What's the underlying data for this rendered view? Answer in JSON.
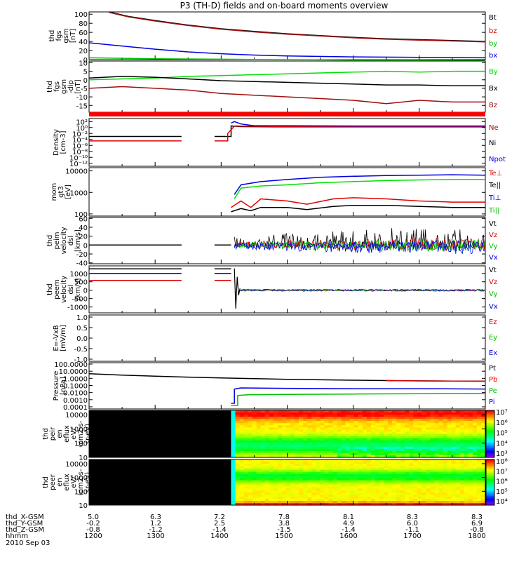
{
  "title": "P3 (TH-D) fields and on-board moments overview",
  "date": "2010 Sep 03",
  "ephemeris": {
    "rows": [
      {
        "label": "thd_X-GSM",
        "values": [
          "5.0",
          "6.3",
          "7.2",
          "7.8",
          "8.1",
          "8.3",
          "8.3"
        ]
      },
      {
        "label": "thd_Y-GSM",
        "values": [
          "-0.2",
          "1.2",
          "2.5",
          "3.8",
          "4.9",
          "6.0",
          "6.9"
        ]
      },
      {
        "label": "thd_Z-GSM",
        "values": [
          "-0.8",
          "-1.2",
          "-1.4",
          "-1.5",
          "-1.4",
          "-1.1",
          "-0.8"
        ]
      }
    ],
    "time_label": "hhmm",
    "times": [
      "1200",
      "1300",
      "1400",
      "1500",
      "1600",
      "1700",
      "1800"
    ]
  },
  "colors": {
    "black": "#000000",
    "red": "#e00000",
    "darkred": "#a01010",
    "green": "#00e000",
    "blue": "#0000e0"
  },
  "chart_data": [
    {
      "type": "line",
      "ylabel": [
        "thd",
        "fgs",
        "gsm",
        "[nT]"
      ],
      "yticks": [
        "100",
        "80",
        "60",
        "40",
        "20",
        "0"
      ],
      "ylim": [
        0,
        105
      ],
      "x_hours": [
        12.0,
        18.0
      ],
      "legend": [
        {
          "name": "Bt",
          "color": "#000000"
        },
        {
          "name": "bz",
          "color": "#e00000"
        },
        {
          "name": "by",
          "color": "#00c000"
        },
        {
          "name": "bx",
          "color": "#0000e0"
        }
      ],
      "series": [
        {
          "name": "Bt",
          "color": "#000000",
          "x": [
            12.3,
            12.6,
            13.0,
            13.5,
            14.0,
            14.5,
            15.0,
            15.5,
            16.0,
            16.5,
            17.0,
            17.5,
            18.0
          ],
          "y": [
            105,
            95,
            86,
            76,
            68,
            62,
            57,
            53,
            49,
            46,
            44,
            42,
            40
          ]
        },
        {
          "name": "bz",
          "color": "#a01010",
          "x": [
            12.3,
            12.6,
            13.0,
            13.5,
            14.0,
            14.5,
            15.0,
            15.5,
            16.0,
            16.5,
            17.0,
            17.5,
            18.0
          ],
          "y": [
            104,
            94,
            85,
            75,
            67,
            61,
            56,
            52,
            48,
            45,
            43,
            41,
            39
          ]
        },
        {
          "name": "bx",
          "color": "#0000e0",
          "x": [
            12.0,
            12.5,
            13.0,
            13.5,
            14.0,
            14.5,
            15.0,
            16.0,
            17.0,
            18.0
          ],
          "y": [
            37,
            30,
            23,
            17,
            13,
            10,
            8,
            6,
            5,
            4
          ]
        },
        {
          "name": "by",
          "color": "#00c000",
          "x": [
            12.0,
            12.5,
            13.0,
            14.0,
            15.0,
            16.0,
            17.0,
            18.0
          ],
          "y": [
            4,
            3,
            2,
            1,
            0,
            -1,
            -1,
            -2
          ]
        }
      ]
    },
    {
      "type": "line",
      "ylabel": [
        "thd",
        "fgs",
        "gsm",
        "-dip",
        "[nT]"
      ],
      "yticks": [
        "10",
        "5",
        "0",
        "-5",
        "-10",
        "-15"
      ],
      "ylim": [
        -19,
        11
      ],
      "x_hours": [
        12.0,
        18.0
      ],
      "legend": [
        {
          "name": "By",
          "color": "#00e000"
        },
        {
          "name": "Bx",
          "color": "#000000"
        },
        {
          "name": "Bz",
          "color": "#a01010"
        }
      ],
      "series": [
        {
          "name": "By",
          "color": "#00e000",
          "x": [
            12.0,
            12.5,
            13.0,
            13.5,
            14.0,
            14.5,
            15.0,
            15.5,
            16.0,
            16.5,
            17.0,
            17.5,
            18.0
          ],
          "y": [
            0,
            0.5,
            1,
            2,
            2.5,
            3,
            3.5,
            4,
            4.5,
            5,
            4.5,
            5,
            5
          ]
        },
        {
          "name": "Bx",
          "color": "#000000",
          "x": [
            12.0,
            12.5,
            13.0,
            13.5,
            14.0,
            14.5,
            15.0,
            15.5,
            16.0,
            16.5,
            17.0,
            17.5,
            18.0
          ],
          "y": [
            1,
            2,
            1.5,
            0.5,
            -0.5,
            -1,
            -1.5,
            -2,
            -2.5,
            -3,
            -3,
            -3.5,
            -3.5
          ]
        },
        {
          "name": "Bz",
          "color": "#a01010",
          "x": [
            12.0,
            12.5,
            13.0,
            13.5,
            14.0,
            14.5,
            15.0,
            15.5,
            16.0,
            16.5,
            17.0,
            17.5,
            18.0
          ],
          "y": [
            -5,
            -4,
            -5,
            -6,
            -8,
            -9,
            -10,
            -11,
            -12,
            -14,
            -12,
            -13,
            -13
          ]
        }
      ]
    },
    {
      "type": "line",
      "ylabel": [
        "Density",
        "[cm-3]"
      ],
      "yticks": [
        "10²",
        "10⁰",
        "10⁻²",
        "10⁻⁴",
        "10⁻⁶",
        "10⁻⁸",
        "10⁻¹⁰",
        "10⁻¹²"
      ],
      "ylim_log10": [
        -13,
        3
      ],
      "x_hours": [
        12.0,
        18.0
      ],
      "legend": [
        {
          "name": "Ne",
          "color": "#a01010"
        },
        {
          "name": "Ni",
          "color": "#000000"
        },
        {
          "name": "Npot",
          "color": "#0000e0"
        }
      ],
      "series": [
        {
          "name": "Ni",
          "color": "#000000",
          "x": [
            12.0,
            13.4,
            null,
            13.9,
            14.15,
            14.15,
            14.3,
            15.0,
            16.0,
            17.0,
            18.0
          ],
          "y": [
            -3,
            -3,
            null,
            -3,
            -3,
            0.5,
            0.3,
            0.2,
            0.2,
            0.2,
            0.2
          ]
        },
        {
          "name": "Ne",
          "color": "#e00000",
          "x": [
            12.0,
            13.4,
            null,
            13.9,
            14.1,
            14.1,
            14.2,
            15.0,
            16.0,
            17.0,
            18.0
          ],
          "y": [
            -4.5,
            -4.5,
            null,
            -4.5,
            -4.5,
            -2,
            0.5,
            0.3,
            0.3,
            0.3,
            0.3
          ]
        },
        {
          "name": "Npot",
          "color": "#0000e0",
          "x": [
            14.15,
            14.2,
            14.3,
            14.5,
            15.0,
            16.0,
            17.0,
            18.0
          ],
          "y": [
            1.5,
            2.0,
            1.2,
            0.6,
            0.6,
            0.5,
            0.5,
            0.5
          ]
        }
      ]
    },
    {
      "type": "line",
      "ylabel": [
        "mom",
        "gt3",
        "[eV]"
      ],
      "yticks": [
        "10000",
        "1000",
        "100"
      ],
      "ylim_log10": [
        1.9,
        4.15
      ],
      "x_hours": [
        12.0,
        18.0
      ],
      "legend": [
        {
          "name": "Te⊥",
          "color": "#e00000"
        },
        {
          "name": "Te||",
          "color": "#000000"
        },
        {
          "name": "Ti⊥",
          "color": "#0000e0"
        },
        {
          "name": "Ti||",
          "color": "#00c000"
        }
      ],
      "series": [
        {
          "name": "Ti⊥",
          "color": "#0000e0",
          "x": [
            14.2,
            14.3,
            14.6,
            15.0,
            15.5,
            16.0,
            16.5,
            17.0,
            17.5,
            18.0
          ],
          "y": [
            2.9,
            3.35,
            3.5,
            3.6,
            3.7,
            3.75,
            3.78,
            3.8,
            3.82,
            3.8
          ]
        },
        {
          "name": "Ti||",
          "color": "#00e000",
          "x": [
            14.2,
            14.3,
            14.6,
            15.0,
            15.5,
            16.0,
            16.5,
            17.0,
            17.5,
            18.0
          ],
          "y": [
            2.7,
            3.2,
            3.3,
            3.35,
            3.45,
            3.5,
            3.55,
            3.58,
            3.6,
            3.6
          ]
        },
        {
          "name": "Te⊥",
          "color": "#e00000",
          "x": [
            14.15,
            14.3,
            14.45,
            14.6,
            15.0,
            15.3,
            15.7,
            16.0,
            16.5,
            17.0,
            17.5,
            18.0
          ],
          "y": [
            2.3,
            2.6,
            2.3,
            2.7,
            2.6,
            2.45,
            2.7,
            2.75,
            2.7,
            2.6,
            2.55,
            2.55
          ]
        },
        {
          "name": "Te||",
          "color": "#000000",
          "x": [
            14.15,
            14.3,
            14.45,
            14.6,
            15.0,
            15.3,
            15.7,
            16.0,
            16.5,
            17.0,
            17.5,
            18.0
          ],
          "y": [
            2.1,
            2.25,
            2.15,
            2.3,
            2.3,
            2.2,
            2.35,
            2.4,
            2.4,
            2.35,
            2.3,
            2.3
          ]
        }
      ]
    },
    {
      "type": "line",
      "ylabel": [
        "thd",
        "peim",
        "velocity",
        "dsl",
        "[km/s]"
      ],
      "yticks": [
        "60",
        "40",
        "20",
        "0",
        "-20",
        "-40"
      ],
      "ylim": [
        -42,
        62
      ],
      "x_hours": [
        12.0,
        18.0
      ],
      "legend": [
        {
          "name": "Vt",
          "color": "#000000"
        },
        {
          "name": "Vz",
          "color": "#e00000"
        },
        {
          "name": "Vy",
          "color": "#00c000"
        },
        {
          "name": "Vx",
          "color": "#0000e0"
        }
      ],
      "series": [
        {
          "name": "Vx",
          "color": "#0000e0",
          "x": [
            12.0,
            13.4,
            null,
            13.9,
            14.15
          ],
          "y": [
            0,
            0,
            null,
            0,
            0
          ]
        },
        {
          "name": "Vt",
          "color": "#000000",
          "x": [
            12.0,
            13.4,
            null,
            13.9,
            14.15
          ],
          "y": [
            0,
            0,
            null,
            0,
            0
          ]
        }
      ],
      "noise_band": {
        "x_start": 14.2,
        "x_end": 18.0
      }
    },
    {
      "type": "line",
      "ylabel": [
        "thd",
        "peem",
        "velocity",
        "dsl",
        "[km/s]"
      ],
      "yticks": [
        "1000",
        "500",
        "0",
        "-500",
        "-1000"
      ],
      "ylim": [
        -1350,
        1450
      ],
      "x_hours": [
        12.0,
        18.0
      ],
      "legend": [
        {
          "name": "Vt",
          "color": "#000000"
        },
        {
          "name": "Vz",
          "color": "#e00000"
        },
        {
          "name": "Vy",
          "color": "#00c000"
        },
        {
          "name": "Vx",
          "color": "#0000e0"
        }
      ],
      "series": [
        {
          "name": "Vy",
          "color": "#00c000",
          "x": [
            12.0,
            13.4,
            null,
            13.9,
            14.15
          ],
          "y": [
            1270,
            1270,
            null,
            1270,
            1270
          ]
        },
        {
          "name": "Vt",
          "color": "#000000",
          "x": [
            12.0,
            13.4,
            null,
            13.9,
            14.15
          ],
          "y": [
            1270,
            1270,
            null,
            1270,
            1270
          ]
        },
        {
          "name": "Vx",
          "color": "#0000e0",
          "x": [
            12.0,
            13.4,
            null,
            13.9,
            14.15
          ],
          "y": [
            1000,
            1000,
            null,
            1000,
            1000
          ]
        },
        {
          "name": "Vz",
          "color": "#e00000",
          "x": [
            12.0,
            13.4,
            null,
            13.9,
            14.15
          ],
          "y": [
            580,
            580,
            null,
            580,
            580
          ]
        }
      ]
    },
    {
      "type": "line",
      "ylabel": [
        "E=-VxB",
        "[mV/m]"
      ],
      "yticks": [
        "1.0",
        "0.5",
        "0.0",
        "-0.5",
        "-1.0"
      ],
      "ylim": [
        -1.1,
        1.1
      ],
      "x_hours": [
        12.0,
        18.0
      ],
      "legend": [
        {
          "name": "Ez",
          "color": "#e00000"
        },
        {
          "name": "Ey",
          "color": "#00c000"
        },
        {
          "name": "Ex",
          "color": "#0000e0"
        }
      ],
      "series": []
    },
    {
      "type": "line",
      "ylabel": [
        "Pressure",
        "[nPa]"
      ],
      "yticks": [
        "100.0000",
        "10.0000",
        "1.0000",
        "0.1000",
        "0.0100",
        "0.0010",
        "0.0001"
      ],
      "ylim_log10": [
        -4.3,
        2.2
      ],
      "x_hours": [
        12.0,
        18.0
      ],
      "legend": [
        {
          "name": "Pt",
          "color": "#000000"
        },
        {
          "name": "Pb",
          "color": "#e00000"
        },
        {
          "name": "Pe",
          "color": "#00c000"
        },
        {
          "name": "Pi",
          "color": "#0000e0"
        }
      ],
      "series": [
        {
          "name": "Pt",
          "color": "#000000",
          "x": [
            12.0,
            12.5,
            13.0,
            13.5,
            14.0,
            14.5,
            15.0,
            15.5,
            16.0,
            16.5,
            17.0,
            17.5,
            18.0
          ],
          "y": [
            0.65,
            0.45,
            0.3,
            0.17,
            0.05,
            -0.05,
            -0.13,
            -0.2,
            -0.26,
            -0.31,
            -0.35,
            -0.38,
            -0.4
          ]
        },
        {
          "name": "Pb",
          "color": "#e00000",
          "x": [
            16.5,
            17.0,
            17.5,
            18.0
          ],
          "y": [
            -0.32,
            -0.36,
            -0.39,
            -0.41
          ]
        },
        {
          "name": "Pi",
          "color": "#0000e0",
          "x": [
            14.15,
            14.2,
            14.2,
            14.3,
            15.0,
            16.0,
            17.0,
            18.0
          ],
          "y": [
            -3.5,
            -3.5,
            -1.5,
            -1.35,
            -1.4,
            -1.45,
            -1.45,
            -1.5
          ]
        },
        {
          "name": "Pe",
          "color": "#00c000",
          "x": [
            14.15,
            14.25,
            14.25,
            14.4,
            15.0,
            16.0,
            17.0,
            18.0
          ],
          "y": [
            -3.8,
            -3.8,
            -2.4,
            -2.3,
            -2.25,
            -2.2,
            -2.15,
            -2.1
          ]
        }
      ]
    },
    {
      "type": "heatmap",
      "ylabel": [
        "thd",
        "peir",
        "en",
        "eflux",
        "eV/",
        "(cm2-s-",
        "sr-eV)"
      ],
      "yticks": [
        "10000",
        "1000",
        "100",
        "10"
      ],
      "ylim_log10": [
        1.0,
        4.3
      ],
      "x_hours": [
        12.0,
        18.0
      ],
      "data_start_hour": 14.15,
      "colorbar_ticks": [
        "10⁷",
        "10⁶",
        "10⁵",
        "10⁴",
        "10³"
      ]
    },
    {
      "type": "heatmap",
      "ylabel": [
        "thd",
        "peer",
        "en",
        "eflux",
        "eV/",
        "(cm2-s-",
        "sr-eV)"
      ],
      "yticks": [
        "10000",
        "1000",
        "100",
        "10"
      ],
      "ylim_log10": [
        1.0,
        4.3
      ],
      "x_hours": [
        12.0,
        18.0
      ],
      "data_start_hour": 14.15,
      "colorbar_ticks": [
        "10⁸",
        "10⁷",
        "10⁶",
        "10⁵",
        "10⁴"
      ]
    }
  ]
}
